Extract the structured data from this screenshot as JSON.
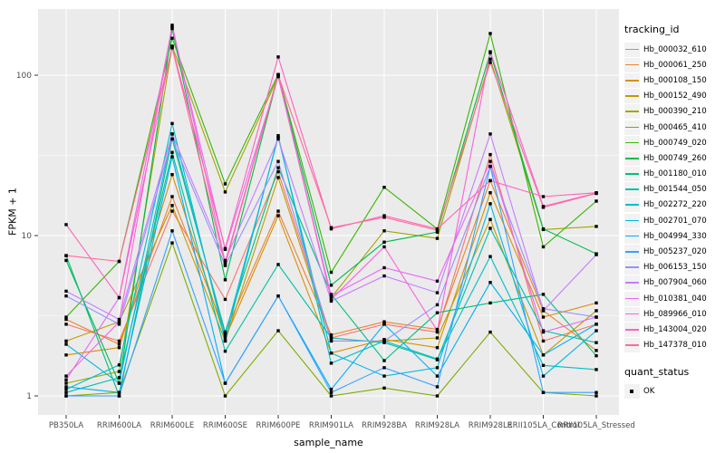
{
  "chart_data": {
    "type": "line",
    "title": "",
    "xlabel": "sample_name",
    "ylabel": "FPKM + 1",
    "y_scale": "log10",
    "y_ticks": [
      1,
      10,
      100
    ],
    "y_tick_labels": [
      "1",
      "10",
      "100"
    ],
    "y_minor_ticks": [
      3.1623,
      31.623
    ],
    "legend_title": "tracking_id",
    "legend2_title": "quant_status",
    "legend2_items": [
      "OK"
    ],
    "legend_position": "right",
    "grid": "on",
    "panel_bg": "#EBEBEB",
    "grid_color": "#FFFFFF",
    "tick_label_color": "#4D4D4D",
    "point_shape": "square",
    "point_color": "#000000",
    "categories": [
      "PB350LA",
      "RRIM600LA",
      "RRIM600LE",
      "RRIM600SE",
      "RRIM600PE",
      "RRIM901LA",
      "RRIM928BA",
      "RRIM928LA",
      "RRIM928LE",
      "RRII105LA_Control",
      "RRII105LA_Stressed"
    ],
    "series": [
      {
        "name": "Hb_000032_610",
        "color": "#F8766D",
        "values": [
          2.8,
          2.2,
          14.2,
          4.0,
          25,
          2.3,
          2.8,
          2.5,
          32,
          2.2,
          2.8
        ]
      },
      {
        "name": "Hb_000061_250",
        "color": "#EA8331",
        "values": [
          3.0,
          2.1,
          17.5,
          2.5,
          14.2,
          2.4,
          2.9,
          2.6,
          22,
          3.4,
          1.92
        ]
      },
      {
        "name": "Hb_000108_150",
        "color": "#D89000",
        "values": [
          1.8,
          2.0,
          24,
          2.3,
          13.3,
          1.85,
          2.25,
          2.0,
          18.5,
          3.1,
          3.8
        ]
      },
      {
        "name": "Hb_000152_490",
        "color": "#C09B00",
        "values": [
          2.2,
          2.9,
          15.4,
          2.2,
          23,
          2.2,
          2.2,
          2.3,
          12.6,
          1.8,
          3.4
        ]
      },
      {
        "name": "Hb_000390_210",
        "color": "#A3A500",
        "values": [
          1.2,
          1.42,
          152,
          18.7,
          98,
          4.1,
          10.7,
          9.6,
          126,
          10.9,
          11.4
        ]
      },
      {
        "name": "Hb_000465_410",
        "color": "#7CAE00",
        "values": [
          1.0,
          1.05,
          9.0,
          1.0,
          2.55,
          1.0,
          1.12,
          1.0,
          2.5,
          1.05,
          1.0
        ]
      },
      {
        "name": "Hb_000749_020",
        "color": "#39B600",
        "values": [
          3.1,
          6.9,
          170,
          21,
          101,
          5.9,
          20,
          11,
          182,
          8.5,
          16.4
        ]
      },
      {
        "name": "Hb_000749_260",
        "color": "#00BB4E",
        "values": [
          7.0,
          1.2,
          195,
          5.3,
          100,
          4.9,
          9.1,
          10.5,
          138,
          11.0,
          7.7
        ]
      },
      {
        "name": "Hb_001180_010",
        "color": "#00BF7D",
        "values": [
          7.5,
          1.0,
          40,
          2.5,
          26.5,
          4.3,
          1.66,
          3.3,
          3.8,
          4.3,
          1.78
        ]
      },
      {
        "name": "Hb_001544_050",
        "color": "#00C1A3",
        "values": [
          1.05,
          1.3,
          33,
          1.9,
          6.6,
          2.3,
          2.15,
          1.68,
          11.1,
          2.55,
          2.15
        ]
      },
      {
        "name": "Hb_002272_220",
        "color": "#00BFC4",
        "values": [
          1.1,
          1.56,
          50,
          2.2,
          42,
          1.6,
          2.2,
          1.7,
          7.4,
          1.55,
          1.46
        ]
      },
      {
        "name": "Hb_002701_070",
        "color": "#00BAE0",
        "values": [
          2.1,
          1.2,
          43,
          2.4,
          41,
          1.85,
          1.33,
          1.5,
          15.8,
          1.33,
          2.55
        ]
      },
      {
        "name": "Hb_004994_330",
        "color": "#00B0F6",
        "values": [
          1.14,
          1.05,
          31,
          1.2,
          4.2,
          1.1,
          2.8,
          1.33,
          5.1,
          1.8,
          2.8
        ]
      },
      {
        "name": "Hb_005237_020",
        "color": "#35A2FF",
        "values": [
          1.0,
          1.0,
          10.7,
          1.2,
          4.2,
          1.05,
          1.5,
          1.14,
          27,
          1.05,
          1.05
        ]
      },
      {
        "name": "Hb_006153_150",
        "color": "#9590FF",
        "values": [
          4.2,
          2.8,
          40,
          6.5,
          29,
          2.2,
          2.2,
          3.7,
          27,
          3.5,
          3.1
        ]
      },
      {
        "name": "Hb_007904_060",
        "color": "#C77CFF",
        "values": [
          4.5,
          3.0,
          43,
          7.0,
          40,
          3.9,
          5.6,
          4.4,
          43,
          3.4,
          7.6
        ]
      },
      {
        "name": "Hb_010381_040",
        "color": "#E76BF3",
        "values": [
          1.26,
          4.1,
          200,
          8.2,
          98,
          4.2,
          6.3,
          5.2,
          29,
          2.5,
          3.1
        ]
      },
      {
        "name": "Hb_089966_010",
        "color": "#FA62DB",
        "values": [
          1.33,
          2.9,
          205,
          6.8,
          101,
          4.0,
          8.5,
          2.55,
          140,
          15.2,
          18.4
        ]
      },
      {
        "name": "Hb_143004_020",
        "color": "#FF62BC",
        "values": [
          11.7,
          4.1,
          150,
          8.3,
          130,
          11.0,
          13.3,
          11.0,
          22,
          17.5,
          18.5
        ]
      },
      {
        "name": "Hb_147378_010",
        "color": "#FF6A98",
        "values": [
          7.5,
          6.9,
          148,
          6.6,
          100,
          11.2,
          13.0,
          10.8,
          120,
          15.0,
          18.3
        ]
      }
    ]
  }
}
